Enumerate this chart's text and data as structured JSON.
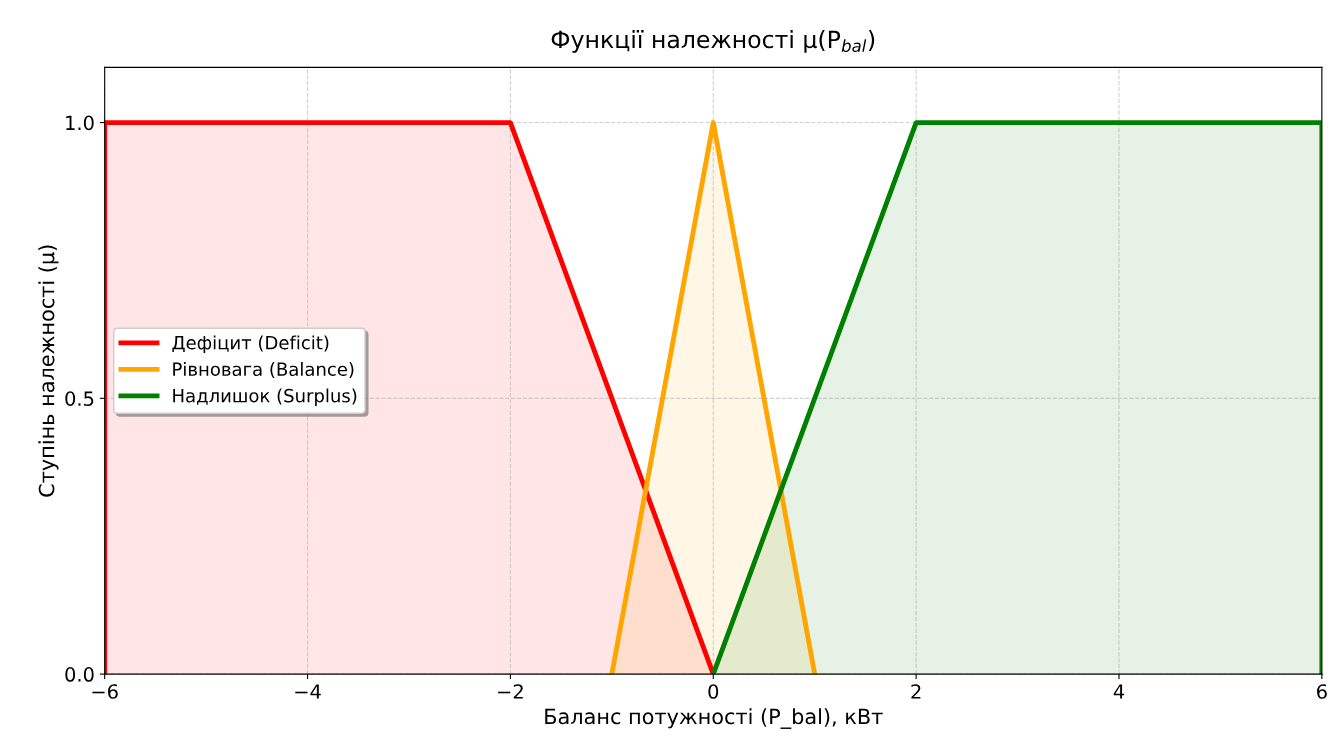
{
  "chart_data": {
    "type": "area",
    "title": "Функції належності μ(P$_{bal}$)",
    "xlabel": "Баланс потужності (P_bal), кВт",
    "ylabel": "Ступінь належності (μ)",
    "series": [
      {
        "name": "Дефіцит (Deficit)",
        "color": "#ff0000",
        "x": [
          -6,
          -6,
          -2,
          0
        ],
        "values": [
          0,
          1,
          1,
          0
        ]
      },
      {
        "name": "Рівновага (Balance)",
        "color": "#ffa500",
        "x": [
          -1,
          0,
          1
        ],
        "values": [
          0,
          1,
          0
        ]
      },
      {
        "name": "Надлишок (Surplus)",
        "color": "#008000",
        "x": [
          0,
          2,
          6,
          6
        ],
        "values": [
          0,
          1,
          1,
          0
        ]
      }
    ],
    "xlim": [
      -6,
      6
    ],
    "xticks": [
      {
        "value": -6,
        "label": "−6"
      },
      {
        "value": -4,
        "label": "−4"
      },
      {
        "value": -2,
        "label": "−2"
      },
      0,
      2,
      4,
      6
    ],
    "ylim": [
      0,
      1.1
    ],
    "yticks": [
      {
        "value": 0,
        "label": "0.0"
      },
      {
        "value": 0.5,
        "label": "0.5"
      },
      {
        "value": 1,
        "label": "1.0"
      }
    ],
    "grid": true,
    "legend": "left"
  }
}
